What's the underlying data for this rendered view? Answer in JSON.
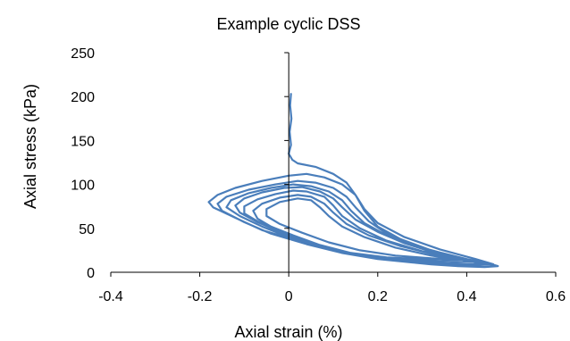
{
  "chart_data": {
    "type": "line",
    "title": "Example cyclic DSS",
    "xlabel": "Axial strain (%)",
    "ylabel": "Axial stress (kPa)",
    "xlim": [
      -0.4,
      0.6
    ],
    "ylim": [
      0,
      250
    ],
    "x_ticks": [
      "-0.4",
      "-0.2",
      "0",
      "0.2",
      "0.4",
      "0.6"
    ],
    "y_ticks": [
      "0",
      "50",
      "100",
      "150",
      "200",
      "250"
    ],
    "grid": false,
    "legend": "none",
    "series": [
      {
        "color": "#4a7ebb",
        "points": [
          [
            0.005,
            203
          ],
          [
            0.003,
            190
          ],
          [
            0.006,
            175
          ],
          [
            0.002,
            160
          ],
          [
            0.005,
            145
          ],
          [
            0.0,
            135
          ],
          [
            0.008,
            128
          ],
          [
            0.02,
            124
          ],
          [
            0.06,
            120
          ],
          [
            0.1,
            112
          ],
          [
            0.13,
            102
          ],
          [
            0.15,
            88
          ],
          [
            0.17,
            70
          ],
          [
            0.2,
            52
          ],
          [
            0.25,
            38
          ],
          [
            0.32,
            25
          ],
          [
            0.4,
            15
          ],
          [
            0.45,
            10
          ],
          [
            0.47,
            7
          ],
          [
            0.44,
            6
          ],
          [
            0.38,
            7
          ],
          [
            0.32,
            9
          ],
          [
            0.26,
            12
          ],
          [
            0.18,
            18
          ],
          [
            0.1,
            26
          ],
          [
            0.02,
            36
          ],
          [
            -0.06,
            48
          ],
          [
            -0.12,
            62
          ],
          [
            -0.17,
            74
          ],
          [
            -0.18,
            80
          ],
          [
            -0.16,
            88
          ],
          [
            -0.12,
            96
          ],
          [
            -0.06,
            104
          ],
          [
            0.0,
            110
          ],
          [
            0.04,
            112
          ],
          [
            0.08,
            108
          ],
          [
            0.12,
            100
          ],
          [
            0.15,
            88
          ],
          [
            0.17,
            72
          ],
          [
            0.2,
            56
          ],
          [
            0.26,
            40
          ],
          [
            0.34,
            26
          ],
          [
            0.42,
            15
          ],
          [
            0.46,
            9
          ],
          [
            0.42,
            8
          ],
          [
            0.35,
            9
          ],
          [
            0.28,
            11
          ],
          [
            0.2,
            15
          ],
          [
            0.12,
            22
          ],
          [
            0.04,
            32
          ],
          [
            -0.04,
            44
          ],
          [
            -0.1,
            57
          ],
          [
            -0.15,
            70
          ],
          [
            -0.16,
            78
          ],
          [
            -0.14,
            86
          ],
          [
            -0.09,
            94
          ],
          [
            -0.03,
            100
          ],
          [
            0.02,
            104
          ],
          [
            0.06,
            102
          ],
          [
            0.1,
            96
          ],
          [
            0.13,
            86
          ],
          [
            0.15,
            74
          ],
          [
            0.18,
            58
          ],
          [
            0.22,
            44
          ],
          [
            0.3,
            28
          ],
          [
            0.38,
            17
          ],
          [
            0.44,
            10
          ],
          [
            0.4,
            9
          ],
          [
            0.32,
            10
          ],
          [
            0.24,
            13
          ],
          [
            0.16,
            19
          ],
          [
            0.08,
            28
          ],
          [
            0.0,
            40
          ],
          [
            -0.06,
            52
          ],
          [
            -0.11,
            64
          ],
          [
            -0.14,
            74
          ],
          [
            -0.13,
            82
          ],
          [
            -0.09,
            90
          ],
          [
            -0.04,
            96
          ],
          [
            0.01,
            100
          ],
          [
            0.05,
            98
          ],
          [
            0.09,
            92
          ],
          [
            0.12,
            82
          ],
          [
            0.14,
            70
          ],
          [
            0.17,
            56
          ],
          [
            0.22,
            42
          ],
          [
            0.28,
            30
          ],
          [
            0.36,
            19
          ],
          [
            0.42,
            12
          ],
          [
            0.36,
            11
          ],
          [
            0.28,
            12
          ],
          [
            0.2,
            16
          ],
          [
            0.12,
            23
          ],
          [
            0.05,
            34
          ],
          [
            -0.02,
            46
          ],
          [
            -0.07,
            57
          ],
          [
            -0.11,
            68
          ],
          [
            -0.12,
            76
          ],
          [
            -0.1,
            84
          ],
          [
            -0.06,
            91
          ],
          [
            -0.01,
            96
          ],
          [
            0.03,
            97
          ],
          [
            0.07,
            92
          ],
          [
            0.1,
            84
          ],
          [
            0.12,
            74
          ],
          [
            0.15,
            60
          ],
          [
            0.2,
            46
          ],
          [
            0.26,
            33
          ],
          [
            0.33,
            22
          ],
          [
            0.4,
            14
          ],
          [
            0.34,
            13
          ],
          [
            0.26,
            14
          ],
          [
            0.18,
            18
          ],
          [
            0.1,
            26
          ],
          [
            0.03,
            37
          ],
          [
            -0.03,
            48
          ],
          [
            -0.07,
            58
          ],
          [
            -0.1,
            67
          ],
          [
            -0.1,
            75
          ],
          [
            -0.07,
            83
          ],
          [
            -0.03,
            89
          ],
          [
            0.01,
            93
          ],
          [
            0.04,
            92
          ],
          [
            0.08,
            86
          ],
          [
            0.1,
            76
          ],
          [
            0.12,
            64
          ],
          [
            0.16,
            50
          ],
          [
            0.22,
            36
          ],
          [
            0.3,
            24
          ],
          [
            0.38,
            16
          ],
          [
            0.3,
            15
          ],
          [
            0.22,
            17
          ],
          [
            0.14,
            22
          ],
          [
            0.07,
            31
          ],
          [
            0.01,
            42
          ],
          [
            -0.04,
            52
          ],
          [
            -0.07,
            61
          ],
          [
            -0.08,
            70
          ],
          [
            -0.06,
            78
          ],
          [
            -0.02,
            85
          ],
          [
            0.02,
            88
          ],
          [
            0.05,
            86
          ],
          [
            0.08,
            78
          ],
          [
            0.1,
            68
          ],
          [
            0.13,
            55
          ],
          [
            0.18,
            42
          ],
          [
            0.25,
            30
          ],
          [
            0.33,
            20
          ],
          [
            0.4,
            14
          ],
          [
            0.32,
            16
          ],
          [
            0.24,
            19
          ],
          [
            0.16,
            25
          ],
          [
            0.09,
            34
          ],
          [
            0.03,
            45
          ],
          [
            -0.02,
            55
          ],
          [
            -0.05,
            64
          ],
          [
            -0.05,
            72
          ],
          [
            -0.02,
            80
          ],
          [
            0.02,
            84
          ],
          [
            0.05,
            82
          ],
          [
            0.07,
            74
          ],
          [
            0.09,
            64
          ],
          [
            0.12,
            52
          ],
          [
            0.17,
            40
          ],
          [
            0.24,
            28
          ],
          [
            0.32,
            19
          ],
          [
            0.4,
            13
          ],
          [
            0.46,
            8
          ]
        ]
      }
    ]
  }
}
